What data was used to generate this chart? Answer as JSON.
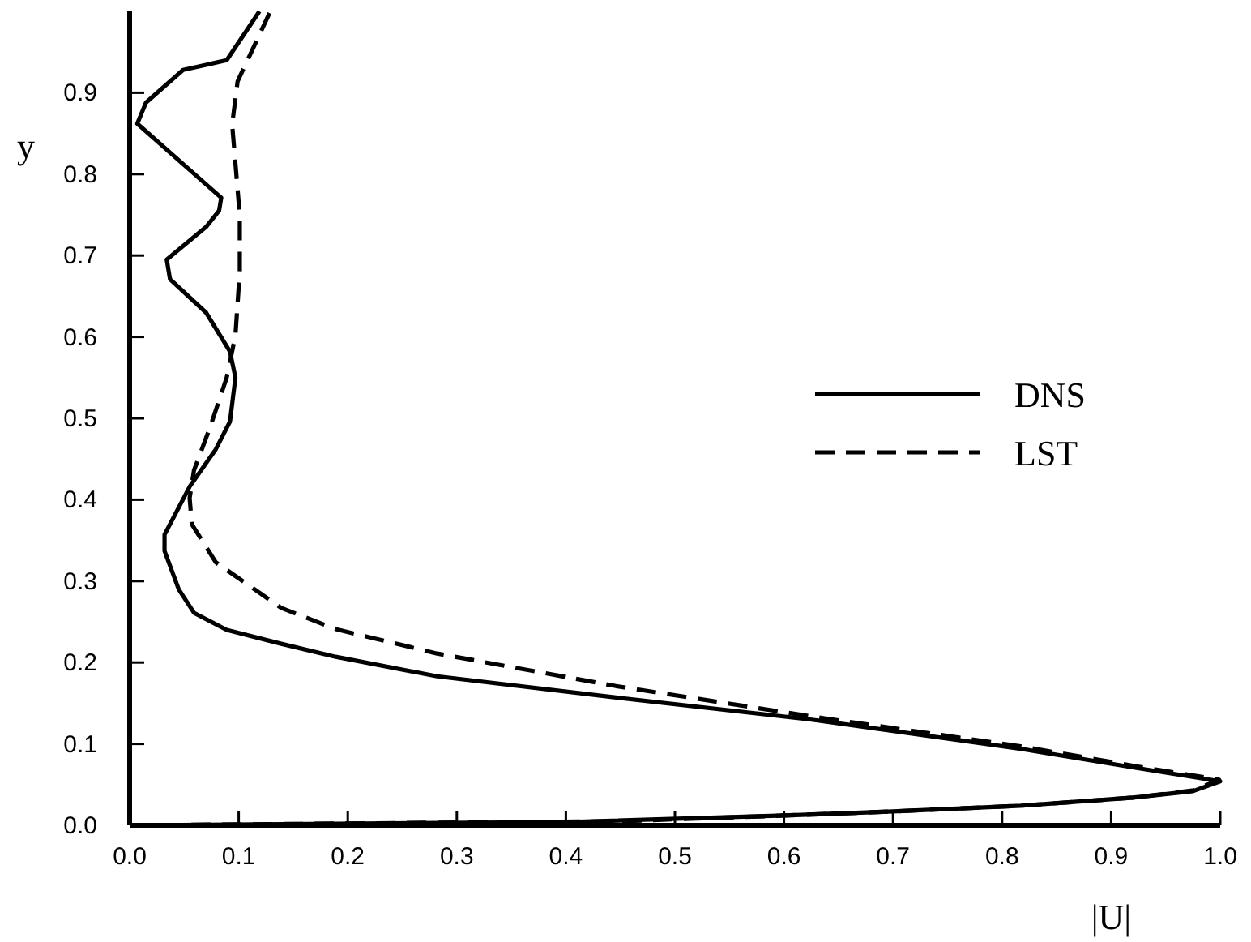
{
  "chart_data": {
    "type": "line",
    "xlabel": "|U|",
    "ylabel": "y",
    "xlim": [
      0,
      1
    ],
    "ylim": [
      0,
      1
    ],
    "xticks": [
      {
        "value": 0,
        "label": "0.0"
      },
      0.1,
      0.2,
      0.3,
      0.4,
      0.5,
      0.6,
      0.7,
      0.8,
      0.9,
      {
        "value": 1,
        "label": "1.0"
      }
    ],
    "yticks": [
      {
        "value": 0,
        "label": "0.0"
      },
      0.1,
      0.2,
      0.3,
      0.4,
      0.5,
      0.6,
      0.7,
      0.8,
      0.9
    ],
    "legend": "right",
    "grid": false,
    "series": [
      {
        "name": "DNS",
        "color": "#000000",
        "line_style": "solid",
        "x": [
          0,
          0.4,
          0.6,
          0.7,
          0.817,
          0.92,
          0.975,
          1.0,
          0.921,
          0.817,
          0.624,
          0.446,
          0.282,
          0.189,
          0.139,
          0.089,
          0.059,
          0.045,
          0.032,
          0.032,
          0.055,
          0.079,
          0.092,
          0.097,
          0.092,
          0.07,
          0.037,
          0.034,
          0.07,
          0.082,
          0.084,
          0.007,
          0.015,
          0.049,
          0.089,
          0.119
        ],
        "values": [
          0,
          0.004,
          0.012,
          0.017,
          0.024,
          0.034,
          0.042,
          0.054,
          0.071,
          0.094,
          0.13,
          0.157,
          0.183,
          0.207,
          0.223,
          0.24,
          0.261,
          0.29,
          0.337,
          0.357,
          0.416,
          0.462,
          0.496,
          0.55,
          0.582,
          0.63,
          0.671,
          0.695,
          0.735,
          0.755,
          0.771,
          0.862,
          0.888,
          0.928,
          0.94,
          1.0
        ]
      },
      {
        "name": "LST",
        "color": "#000000",
        "line_style": "dashed",
        "x": [
          0,
          0.45,
          0.6,
          0.7,
          0.817,
          0.92,
          0.976,
          0.999,
          0.921,
          0.817,
          0.624,
          0.446,
          0.282,
          0.189,
          0.139,
          0.079,
          0.057,
          0.055,
          0.059,
          0.074,
          0.089,
          0.097,
          0.101,
          0.101,
          0.094,
          0.099,
          0.129
        ],
        "values": [
          0,
          0.005,
          0.012,
          0.017,
          0.024,
          0.034,
          0.043,
          0.056,
          0.073,
          0.097,
          0.134,
          0.171,
          0.211,
          0.241,
          0.267,
          0.323,
          0.37,
          0.402,
          0.436,
          0.49,
          0.55,
          0.602,
          0.681,
          0.749,
          0.861,
          0.914,
          1.0
        ]
      }
    ]
  }
}
